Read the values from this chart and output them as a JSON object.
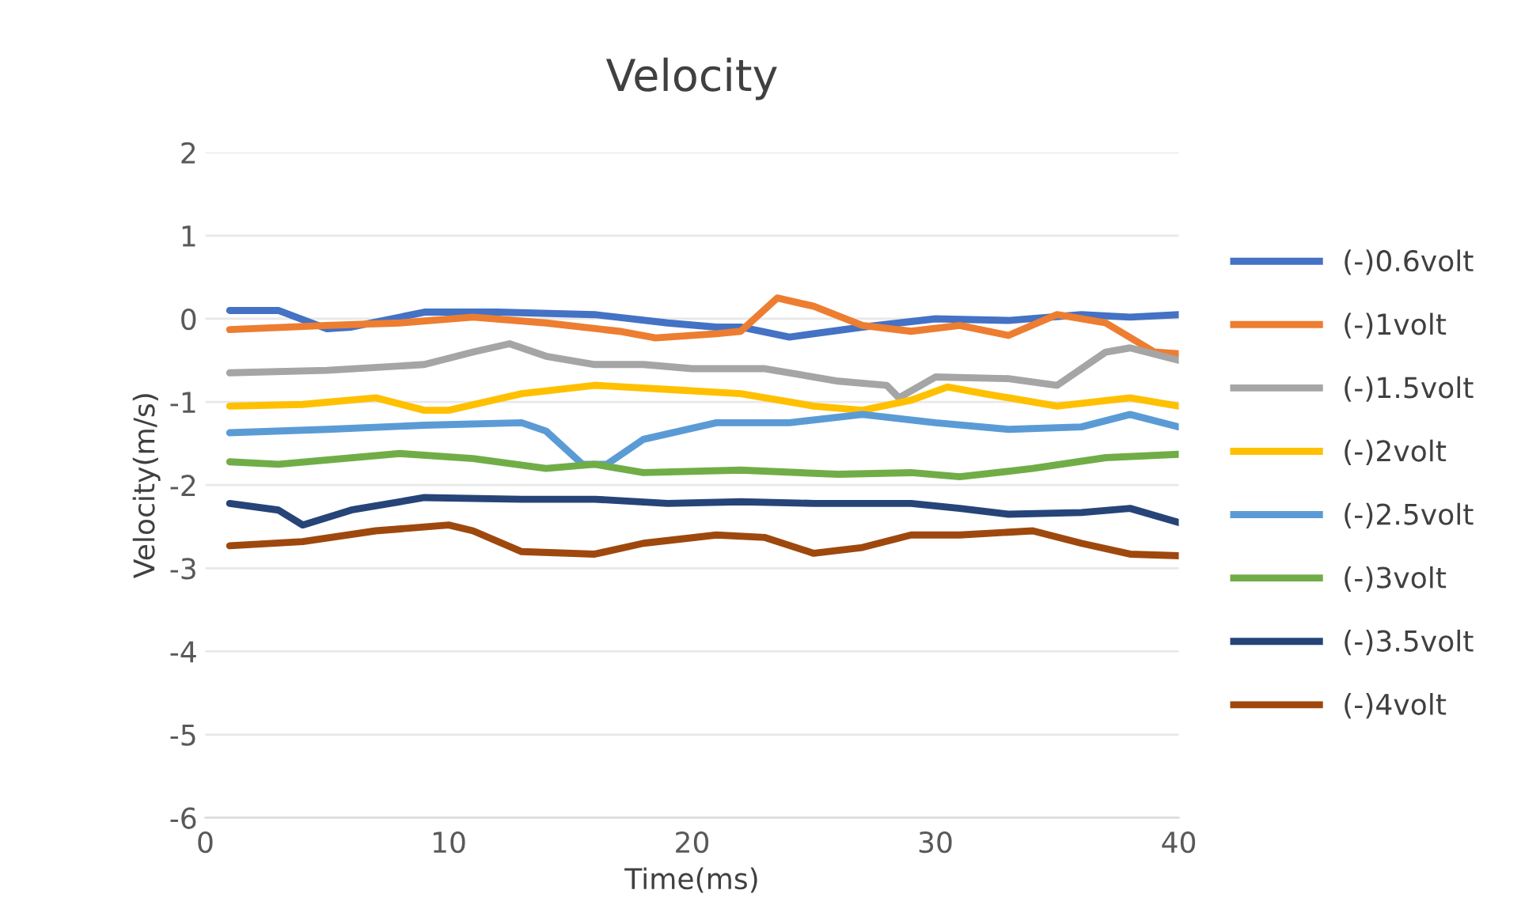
{
  "chart_data": {
    "type": "line",
    "title": "Velocity",
    "xlabel": "Time(ms)",
    "ylabel": "Velocity(m/s)",
    "xlim": [
      0,
      40
    ],
    "xticks": [
      0,
      10,
      20,
      30,
      40
    ],
    "ylim": [
      -6,
      2
    ],
    "yticks": [
      -6,
      -5,
      -4,
      -3,
      -2,
      -1,
      0,
      1,
      2
    ],
    "grid": "y",
    "legend": "right",
    "marker": "none",
    "line_style": "solid",
    "series": [
      {
        "name": "(-)0.6volt",
        "color": "#4472c4",
        "x": [
          1,
          3,
          5,
          6,
          9,
          12,
          16,
          19,
          21,
          22,
          24,
          27,
          30,
          33,
          36,
          38,
          40
        ],
        "values": [
          0.1,
          0.1,
          -0.12,
          -0.1,
          0.08,
          0.08,
          0.05,
          -0.05,
          -0.1,
          -0.1,
          -0.22,
          -0.1,
          0,
          -0.02,
          0.05,
          0.02,
          0.05
        ]
      },
      {
        "name": "(-)1volt",
        "color": "#ed7d31",
        "x": [
          1,
          5,
          8,
          11,
          14,
          17,
          18.5,
          21,
          22,
          23.5,
          25,
          27,
          29,
          31,
          33,
          35,
          37,
          39,
          40
        ],
        "values": [
          -0.13,
          -0.08,
          -0.05,
          0.02,
          -0.05,
          -0.15,
          -0.23,
          -0.18,
          -0.15,
          0.25,
          0.15,
          -0.08,
          -0.15,
          -0.08,
          -0.2,
          0.05,
          -0.05,
          -0.4,
          -0.42
        ]
      },
      {
        "name": "(-)1.5volt",
        "color": "#a5a5a5",
        "x": [
          1,
          5,
          9,
          11,
          12.5,
          14,
          16,
          18,
          20,
          23,
          26,
          28,
          28.5,
          30,
          33,
          35,
          37,
          38,
          40
        ],
        "values": [
          -0.65,
          -0.62,
          -0.55,
          -0.4,
          -0.3,
          -0.45,
          -0.55,
          -0.55,
          -0.6,
          -0.6,
          -0.75,
          -0.8,
          -0.95,
          -0.7,
          -0.72,
          -0.8,
          -0.4,
          -0.35,
          -0.5
        ]
      },
      {
        "name": "(-)2volt",
        "color": "#ffc000",
        "x": [
          1,
          4,
          7,
          9,
          10,
          13,
          16,
          19,
          22,
          25,
          27,
          29,
          30.5,
          32,
          35,
          38,
          40
        ],
        "values": [
          -1.05,
          -1.03,
          -0.95,
          -1.1,
          -1.1,
          -0.9,
          -0.8,
          -0.85,
          -0.9,
          -1.05,
          -1.1,
          -0.98,
          -0.82,
          -0.9,
          -1.05,
          -0.95,
          -1.05
        ]
      },
      {
        "name": "(-)2.5volt",
        "color": "#5b9bd5",
        "x": [
          1,
          5,
          9,
          13,
          14,
          15.5,
          16.5,
          18,
          21,
          24,
          27,
          30,
          33,
          36,
          38,
          40
        ],
        "values": [
          -1.37,
          -1.33,
          -1.28,
          -1.25,
          -1.35,
          -1.75,
          -1.75,
          -1.45,
          -1.25,
          -1.25,
          -1.15,
          -1.25,
          -1.33,
          -1.3,
          -1.15,
          -1.3
        ]
      },
      {
        "name": "(-)3volt",
        "color": "#70ad47",
        "x": [
          1,
          3,
          8,
          11,
          14,
          16,
          18,
          22,
          26,
          29,
          31,
          34,
          37,
          40
        ],
        "values": [
          -1.72,
          -1.75,
          -1.62,
          -1.68,
          -1.8,
          -1.75,
          -1.85,
          -1.82,
          -1.87,
          -1.85,
          -1.9,
          -1.8,
          -1.67,
          -1.63
        ]
      },
      {
        "name": "(-)3.5volt",
        "color": "#264478",
        "x": [
          1,
          3,
          4,
          6,
          9,
          13,
          16,
          19,
          22,
          25,
          29,
          31,
          33,
          36,
          38,
          40
        ],
        "values": [
          -2.22,
          -2.3,
          -2.48,
          -2.3,
          -2.15,
          -2.17,
          -2.17,
          -2.22,
          -2.2,
          -2.22,
          -2.22,
          -2.28,
          -2.35,
          -2.33,
          -2.28,
          -2.45
        ]
      },
      {
        "name": "(-)4volt",
        "color": "#9e480e",
        "x": [
          1,
          4,
          7,
          10,
          11,
          13,
          16,
          18,
          21,
          23,
          25,
          27,
          29,
          31,
          34,
          36,
          38,
          40
        ],
        "values": [
          -2.73,
          -2.68,
          -2.55,
          -2.48,
          -2.55,
          -2.8,
          -2.83,
          -2.7,
          -2.6,
          -2.63,
          -2.82,
          -2.75,
          -2.6,
          -2.6,
          -2.55,
          -2.7,
          -2.83,
          -2.85
        ]
      }
    ]
  }
}
